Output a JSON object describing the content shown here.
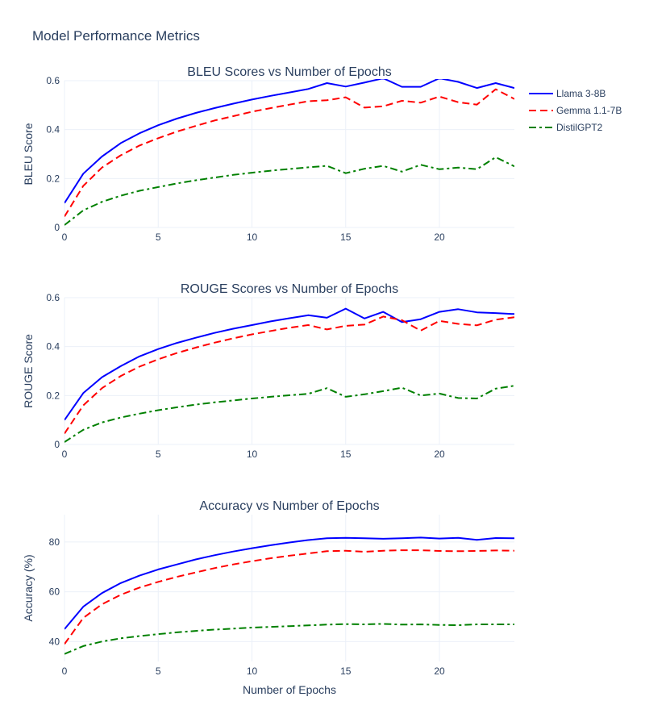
{
  "page": {
    "title": "Model Performance Metrics"
  },
  "legend": {
    "placement": "top-right",
    "entries": [
      {
        "name": "Llama 3-8B",
        "color": "#0000ff",
        "dash": "solid"
      },
      {
        "name": "Gemma 1.1-7B",
        "color": "#ff0000",
        "dash": "dash"
      },
      {
        "name": "DistilGPT2",
        "color": "#008000",
        "dash": "dashdot"
      }
    ]
  },
  "chart_data": [
    {
      "type": "line",
      "title": "BLEU Scores vs Number of Epochs",
      "xlabel": "",
      "ylabel": "BLEU Score",
      "xlim": [
        0,
        24
      ],
      "ylim": [
        0,
        0.6
      ],
      "xticks": [
        0,
        5,
        10,
        15,
        20
      ],
      "yticks": [
        0,
        0.2,
        0.4,
        0.6
      ],
      "ytick_labels": [
        "0",
        "0.2",
        "0.4",
        "0.6"
      ],
      "grid": true,
      "x": [
        0,
        1,
        2,
        3,
        4,
        5,
        6,
        7,
        8,
        9,
        10,
        11,
        12,
        13,
        14,
        15,
        16,
        17,
        18,
        19,
        20,
        21,
        22,
        23,
        24
      ],
      "series": [
        {
          "name": "Llama 3-8B",
          "values": [
            0.1,
            0.22,
            0.29,
            0.345,
            0.385,
            0.418,
            0.445,
            0.468,
            0.488,
            0.506,
            0.523,
            0.538,
            0.552,
            0.566,
            0.59,
            0.576,
            0.592,
            0.61,
            0.575,
            0.575,
            0.61,
            0.595,
            0.57,
            0.59,
            0.57
          ]
        },
        {
          "name": "Gemma 1.1-7B",
          "values": [
            0.045,
            0.17,
            0.245,
            0.295,
            0.335,
            0.365,
            0.392,
            0.415,
            0.437,
            0.455,
            0.473,
            0.488,
            0.502,
            0.516,
            0.52,
            0.532,
            0.49,
            0.495,
            0.518,
            0.51,
            0.535,
            0.512,
            0.502,
            0.565,
            0.525
          ]
        },
        {
          "name": "DistilGPT2",
          "values": [
            0.01,
            0.07,
            0.105,
            0.13,
            0.15,
            0.165,
            0.18,
            0.193,
            0.204,
            0.215,
            0.224,
            0.232,
            0.239,
            0.246,
            0.252,
            0.222,
            0.24,
            0.252,
            0.228,
            0.256,
            0.238,
            0.245,
            0.238,
            0.287,
            0.25
          ]
        }
      ]
    },
    {
      "type": "line",
      "title": "ROUGE Scores vs Number of Epochs",
      "xlabel": "",
      "ylabel": "ROUGE Score",
      "xlim": [
        0,
        24
      ],
      "ylim": [
        0,
        0.6
      ],
      "xticks": [
        0,
        5,
        10,
        15,
        20
      ],
      "yticks": [
        0,
        0.2,
        0.4,
        0.6
      ],
      "ytick_labels": [
        "0",
        "0.2",
        "0.4",
        "0.6"
      ],
      "grid": true,
      "x": [
        0,
        1,
        2,
        3,
        4,
        5,
        6,
        7,
        8,
        9,
        10,
        11,
        12,
        13,
        14,
        15,
        16,
        17,
        18,
        19,
        20,
        21,
        22,
        23,
        24
      ],
      "series": [
        {
          "name": "Llama 3-8B",
          "values": [
            0.1,
            0.21,
            0.275,
            0.32,
            0.36,
            0.39,
            0.415,
            0.436,
            0.456,
            0.473,
            0.488,
            0.503,
            0.516,
            0.528,
            0.518,
            0.555,
            0.515,
            0.542,
            0.5,
            0.512,
            0.542,
            0.553,
            0.54,
            0.537,
            0.533
          ]
        },
        {
          "name": "Gemma 1.1-7B",
          "values": [
            0.045,
            0.16,
            0.23,
            0.28,
            0.318,
            0.348,
            0.374,
            0.396,
            0.416,
            0.434,
            0.45,
            0.464,
            0.477,
            0.488,
            0.47,
            0.485,
            0.49,
            0.523,
            0.508,
            0.465,
            0.505,
            0.493,
            0.487,
            0.51,
            0.52
          ]
        },
        {
          "name": "DistilGPT2",
          "values": [
            0.01,
            0.06,
            0.09,
            0.11,
            0.126,
            0.14,
            0.152,
            0.163,
            0.172,
            0.18,
            0.188,
            0.195,
            0.201,
            0.207,
            0.23,
            0.195,
            0.205,
            0.218,
            0.232,
            0.2,
            0.208,
            0.19,
            0.188,
            0.228,
            0.24
          ]
        }
      ]
    },
    {
      "type": "line",
      "title": "Accuracy vs Number of Epochs",
      "xlabel": "Number of Epochs",
      "ylabel": "Accuracy (%)",
      "xlim": [
        0,
        24
      ],
      "ylim": [
        32,
        91
      ],
      "xticks": [
        0,
        5,
        10,
        15,
        20
      ],
      "yticks": [
        40,
        60,
        80
      ],
      "ytick_labels": [
        "40",
        "60",
        "80"
      ],
      "grid": true,
      "x": [
        0,
        1,
        2,
        3,
        4,
        5,
        6,
        7,
        8,
        9,
        10,
        11,
        12,
        13,
        14,
        15,
        16,
        17,
        18,
        19,
        20,
        21,
        22,
        23,
        24
      ],
      "series": [
        {
          "name": "Llama 3-8B",
          "values": [
            45,
            54,
            59.5,
            63.5,
            66.5,
            69,
            71,
            73,
            74.7,
            76.2,
            77.5,
            78.7,
            79.8,
            80.8,
            81.5,
            81.7,
            81.5,
            81.3,
            81.5,
            81.8,
            81.4,
            81.7,
            80.9,
            81.6,
            81.5
          ]
        },
        {
          "name": "Gemma 1.1-7B",
          "values": [
            39,
            49.5,
            55,
            58.8,
            61.7,
            64,
            66,
            67.8,
            69.5,
            71,
            72.3,
            73.5,
            74.5,
            75.4,
            76.3,
            76.5,
            76.1,
            76.5,
            76.7,
            76.7,
            76.4,
            76.3,
            76.4,
            76.6,
            76.5
          ]
        },
        {
          "name": "DistilGPT2",
          "values": [
            35,
            38.2,
            40,
            41.3,
            42.2,
            43,
            43.7,
            44.3,
            44.8,
            45.2,
            45.6,
            45.9,
            46.2,
            46.5,
            46.8,
            47,
            46.9,
            47.1,
            46.8,
            46.9,
            46.7,
            46.6,
            46.9,
            46.9,
            46.9
          ]
        }
      ]
    }
  ]
}
